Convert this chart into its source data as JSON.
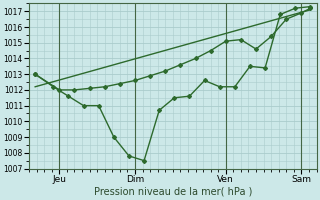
{
  "bg_color": "#cce8e8",
  "grid_color": "#aacccc",
  "line_color": "#2d6a2d",
  "title": "Pression niveau de la mer( hPa )",
  "x_tick_labels": [
    "Jeu",
    "Dim",
    "Ven",
    "Sam"
  ],
  "ylim": [
    1007,
    1017.5
  ],
  "yticks": [
    1007,
    1008,
    1009,
    1010,
    1011,
    1012,
    1013,
    1014,
    1015,
    1016,
    1017
  ],
  "xlim": [
    0,
    9.5
  ],
  "x_tick_positions": [
    1.0,
    3.5,
    6.5,
    9.0
  ],
  "x_vline_positions": [
    1.0,
    3.5,
    6.5,
    9.0
  ],
  "line1_x": [
    0.2,
    0.8,
    1.3,
    1.8,
    2.3,
    2.8,
    3.3,
    3.8,
    4.3,
    4.8,
    5.3,
    5.8,
    6.3,
    6.8,
    7.3,
    7.8,
    8.3,
    8.8,
    9.3
  ],
  "line1_y": [
    1013.0,
    1012.2,
    1011.6,
    1011.0,
    1011.0,
    1009.0,
    1007.8,
    1007.5,
    1010.7,
    1011.5,
    1011.6,
    1012.6,
    1012.2,
    1012.2,
    1013.5,
    1013.4,
    1016.8,
    1017.2,
    1017.3
  ],
  "line2_x": [
    0.2,
    1.0,
    1.5,
    2.0,
    2.5,
    3.0,
    3.5,
    4.0,
    4.5,
    5.0,
    5.5,
    6.0,
    6.5,
    7.0,
    7.5,
    8.0,
    8.5,
    9.0,
    9.3
  ],
  "line2_y": [
    1013.0,
    1012.0,
    1012.0,
    1012.1,
    1012.2,
    1012.4,
    1012.6,
    1012.9,
    1013.2,
    1013.6,
    1014.0,
    1014.5,
    1015.1,
    1015.2,
    1014.6,
    1015.4,
    1016.5,
    1016.9,
    1017.2
  ],
  "trend_x": [
    0.2,
    9.3
  ],
  "trend_y": [
    1012.2,
    1017.1
  ]
}
